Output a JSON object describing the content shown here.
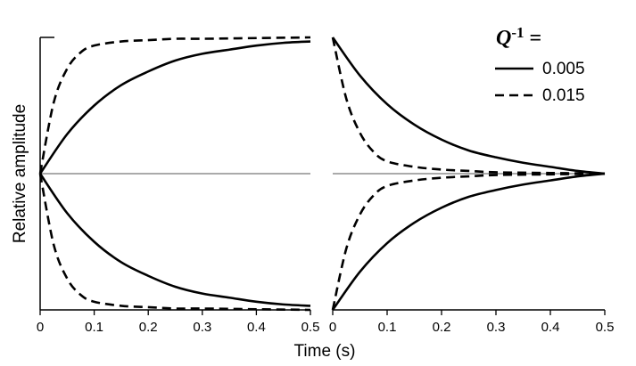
{
  "chart_data": {
    "type": "line",
    "title": "",
    "xlabel": "Time (s)",
    "ylabel": "Relative amplitude",
    "legend": {
      "title_symbol": "Q",
      "title_exponent": "-1",
      "title_suffix": " =",
      "placement": "top-right",
      "entries": [
        {
          "label": "0.005",
          "style": "solid"
        },
        {
          "label": "0.015",
          "style": "dashed"
        }
      ]
    },
    "panels": [
      {
        "id": "left",
        "xlim": [
          0,
          0.5
        ],
        "ylim": [
          -1,
          1
        ],
        "x_ticks": [
          "0",
          "0.1",
          "0.2",
          "0.3",
          "0.4",
          "0.5"
        ],
        "x_tick_values": [
          0,
          0.1,
          0.2,
          0.3,
          0.4,
          0.5
        ],
        "series": [
          {
            "style": "solid",
            "envelope": "upper",
            "x": [
              0,
              0.05,
              0.1,
              0.15,
              0.2,
              0.25,
              0.3,
              0.35,
              0.4,
              0.45,
              0.5
            ],
            "y": [
              0,
              0.29,
              0.5,
              0.65,
              0.75,
              0.83,
              0.88,
              0.91,
              0.94,
              0.96,
              0.97
            ]
          },
          {
            "style": "solid",
            "envelope": "lower",
            "x": [
              0,
              0.05,
              0.1,
              0.15,
              0.2,
              0.25,
              0.3,
              0.35,
              0.4,
              0.45,
              0.5
            ],
            "y": [
              0,
              -0.29,
              -0.5,
              -0.65,
              -0.75,
              -0.83,
              -0.88,
              -0.91,
              -0.94,
              -0.96,
              -0.97
            ]
          },
          {
            "style": "dashed",
            "envelope": "upper",
            "x": [
              0,
              0.025,
              0.05,
              0.075,
              0.1,
              0.15,
              0.2,
              0.25,
              0.3,
              0.4,
              0.5
            ],
            "y": [
              0,
              0.52,
              0.77,
              0.89,
              0.94,
              0.97,
              0.98,
              0.99,
              0.99,
              0.995,
              1.0
            ]
          },
          {
            "style": "dashed",
            "envelope": "lower",
            "x": [
              0,
              0.025,
              0.05,
              0.075,
              0.1,
              0.15,
              0.2,
              0.25,
              0.3,
              0.4,
              0.5
            ],
            "y": [
              0,
              -0.52,
              -0.77,
              -0.89,
              -0.94,
              -0.97,
              -0.98,
              -0.99,
              -0.99,
              -0.995,
              -1.0
            ]
          }
        ]
      },
      {
        "id": "right",
        "xlim": [
          0,
          0.5
        ],
        "ylim": [
          -1,
          1
        ],
        "x_ticks": [
          "0",
          "0.1",
          "0.2",
          "0.3",
          "0.4",
          "0.5"
        ],
        "x_tick_values": [
          0,
          0.1,
          0.2,
          0.3,
          0.4,
          0.5
        ],
        "series": [
          {
            "style": "solid",
            "envelope": "upper",
            "x": [
              0,
              0.05,
              0.1,
              0.15,
              0.2,
              0.25,
              0.3,
              0.35,
              0.4,
              0.45,
              0.5
            ],
            "y": [
              1.0,
              0.72,
              0.51,
              0.36,
              0.25,
              0.17,
              0.12,
              0.08,
              0.05,
              0.02,
              0
            ]
          },
          {
            "style": "solid",
            "envelope": "lower",
            "x": [
              0,
              0.05,
              0.1,
              0.15,
              0.2,
              0.25,
              0.3,
              0.35,
              0.4,
              0.45,
              0.5
            ],
            "y": [
              -1.0,
              -0.72,
              -0.51,
              -0.36,
              -0.25,
              -0.17,
              -0.12,
              -0.08,
              -0.05,
              -0.02,
              0
            ]
          },
          {
            "style": "dashed",
            "envelope": "upper",
            "x": [
              0,
              0.025,
              0.05,
              0.075,
              0.1,
              0.15,
              0.2,
              0.25,
              0.3,
              0.4,
              0.5
            ],
            "y": [
              1.0,
              0.55,
              0.3,
              0.16,
              0.09,
              0.05,
              0.03,
              0.02,
              0.01,
              0.005,
              0
            ]
          },
          {
            "style": "dashed",
            "envelope": "lower",
            "x": [
              0,
              0.025,
              0.05,
              0.075,
              0.1,
              0.15,
              0.2,
              0.25,
              0.3,
              0.4,
              0.5
            ],
            "y": [
              -1.0,
              -0.55,
              -0.3,
              -0.16,
              -0.09,
              -0.05,
              -0.03,
              -0.02,
              -0.01,
              -0.005,
              0
            ]
          }
        ]
      }
    ]
  }
}
